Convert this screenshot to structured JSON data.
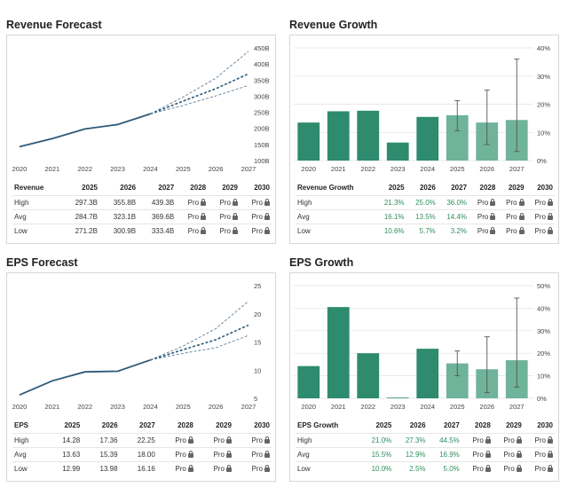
{
  "years": [
    "2025",
    "2026",
    "2027",
    "2028",
    "2029",
    "2030"
  ],
  "pro_label": "Pro",
  "revenue_forecast": {
    "title": "Revenue Forecast",
    "table_header": "Revenue",
    "rows": [
      {
        "label": "High",
        "values": [
          "297.3B",
          "355.8B",
          "439.3B"
        ]
      },
      {
        "label": "Avg",
        "values": [
          "284.7B",
          "323.1B",
          "369.6B"
        ]
      },
      {
        "label": "Low",
        "values": [
          "271.2B",
          "300.9B",
          "333.4B"
        ]
      }
    ]
  },
  "revenue_growth": {
    "title": "Revenue Growth",
    "table_header": "Revenue Growth",
    "rows": [
      {
        "label": "High",
        "values": [
          "21.3%",
          "25.0%",
          "36.0%"
        ]
      },
      {
        "label": "Avg",
        "values": [
          "16.1%",
          "13.5%",
          "14.4%"
        ]
      },
      {
        "label": "Low",
        "values": [
          "10.6%",
          "5.7%",
          "3.2%"
        ]
      }
    ]
  },
  "eps_forecast": {
    "title": "EPS Forecast",
    "table_header": "EPS",
    "rows": [
      {
        "label": "High",
        "values": [
          "14.28",
          "17.36",
          "22.25"
        ]
      },
      {
        "label": "Avg",
        "values": [
          "13.63",
          "15.39",
          "18.00"
        ]
      },
      {
        "label": "Low",
        "values": [
          "12.99",
          "13.98",
          "16.16"
        ]
      }
    ]
  },
  "eps_growth": {
    "title": "EPS Growth",
    "table_header": "EPS Growth",
    "rows": [
      {
        "label": "High",
        "values": [
          "21.0%",
          "27.3%",
          "44.5%"
        ]
      },
      {
        "label": "Avg",
        "values": [
          "15.5%",
          "12.9%",
          "16.9%"
        ]
      },
      {
        "label": "Low",
        "values": [
          "10.0%",
          "2.5%",
          "5.0%"
        ]
      }
    ]
  },
  "chart_data": [
    {
      "type": "line",
      "title": "Revenue Forecast",
      "x": [
        "2020",
        "2021",
        "2022",
        "2023",
        "2024",
        "2025",
        "2026",
        "2027"
      ],
      "y_ticks": [
        "100B",
        "150B",
        "200B",
        "250B",
        "300B",
        "350B",
        "400B",
        "450B"
      ],
      "ylim": [
        100,
        450
      ],
      "series": [
        {
          "values": [
            143,
            168,
            198,
            212,
            245,
            null,
            null,
            null
          ]
        },
        {
          "name": "High",
          "values": [
            null,
            null,
            null,
            null,
            245,
            297.3,
            355.8,
            439.3
          ]
        },
        {
          "name": "Avg",
          "values": [
            null,
            null,
            null,
            null,
            245,
            284.7,
            323.1,
            369.6
          ]
        },
        {
          "name": "Low",
          "values": [
            null,
            null,
            null,
            null,
            245,
            271.2,
            300.9,
            333.4
          ]
        }
      ]
    },
    {
      "type": "bar",
      "title": "Revenue Growth",
      "categories": [
        "2020",
        "2021",
        "2022",
        "2023",
        "2024",
        "2025",
        "2026",
        "2027"
      ],
      "y_ticks": [
        "0%",
        "10%",
        "20%",
        "30%",
        "40%"
      ],
      "ylim": [
        0,
        40
      ],
      "values": [
        13.5,
        17.5,
        17.7,
        6.4,
        15.5,
        16.1,
        13.5,
        14.4
      ],
      "error_high": [
        null,
        null,
        null,
        null,
        null,
        21.3,
        25.0,
        36.0
      ],
      "error_low": [
        null,
        null,
        null,
        null,
        null,
        10.6,
        5.7,
        3.2
      ]
    },
    {
      "type": "line",
      "title": "EPS Forecast",
      "x": [
        "2020",
        "2021",
        "2022",
        "2023",
        "2024",
        "2025",
        "2026",
        "2027"
      ],
      "y_ticks": [
        "5",
        "10",
        "15",
        "20",
        "25"
      ],
      "ylim": [
        5,
        25
      ],
      "series": [
        {
          "values": [
            5.6,
            8.1,
            9.7,
            9.8,
            11.8,
            null,
            null,
            null
          ]
        },
        {
          "name": "High",
          "values": [
            null,
            null,
            null,
            null,
            11.8,
            14.28,
            17.36,
            22.25
          ]
        },
        {
          "name": "Avg",
          "values": [
            null,
            null,
            null,
            null,
            11.8,
            13.63,
            15.39,
            18.0
          ]
        },
        {
          "name": "Low",
          "values": [
            null,
            null,
            null,
            null,
            11.8,
            12.99,
            13.98,
            16.16
          ]
        }
      ]
    },
    {
      "type": "bar",
      "title": "EPS Growth",
      "categories": [
        "2020",
        "2021",
        "2022",
        "2023",
        "2024",
        "2025",
        "2026",
        "2027"
      ],
      "y_ticks": [
        "0%",
        "10%",
        "20%",
        "30%",
        "40%",
        "50%"
      ],
      "ylim": [
        0,
        50
      ],
      "values": [
        14.3,
        40.5,
        20.0,
        0.3,
        22.0,
        15.5,
        12.9,
        16.9
      ],
      "error_high": [
        null,
        null,
        null,
        null,
        null,
        21.0,
        27.3,
        44.5
      ],
      "error_low": [
        null,
        null,
        null,
        null,
        null,
        10.0,
        2.5,
        5.0
      ]
    }
  ],
  "colors": {
    "actual": "#2e8b6e",
    "forecast_bar": "#6fb39a",
    "line": "#2d5a78",
    "forecast_line": "#5b7f99",
    "axis": "#999999",
    "grid": "#e3e3e3",
    "positive": "#2e8f5e"
  }
}
